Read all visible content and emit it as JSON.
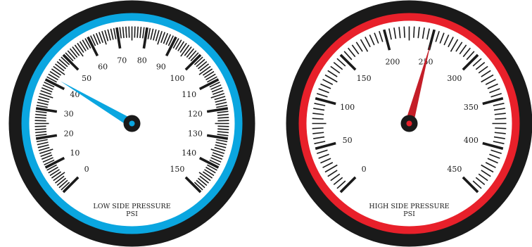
{
  "gauges": [
    {
      "id": "low",
      "title_line1": "LOW SIDE PRESSURE",
      "title_line2": "PSI",
      "min": 0,
      "max": 150,
      "major_step": 10,
      "minor_per_major": 10,
      "labels": [
        "0",
        "10",
        "20",
        "30",
        "40",
        "50",
        "60",
        "70",
        "80",
        "90",
        "100",
        "110",
        "120",
        "130",
        "140",
        "150"
      ],
      "needle_value": 42,
      "rim_color": "#1a1a1a",
      "accent_color": "#0aa6e0",
      "needle_color": "#0aa6e0",
      "hub_center_color": "#0aa6e0"
    },
    {
      "id": "high",
      "title_line1": "HIGH SIDE PRESSURE",
      "title_line2": "PSI",
      "min": 0,
      "max": 450,
      "major_step": 50,
      "minor_per_major": 10,
      "labels": [
        "0",
        "50",
        "100",
        "150",
        "200",
        "250",
        "300",
        "350",
        "400",
        "450"
      ],
      "needle_value": 250,
      "rim_color": "#1a1a1a",
      "accent_color": "#e8202a",
      "needle_color": "#c41e28",
      "hub_center_color": "#e8202a"
    }
  ]
}
